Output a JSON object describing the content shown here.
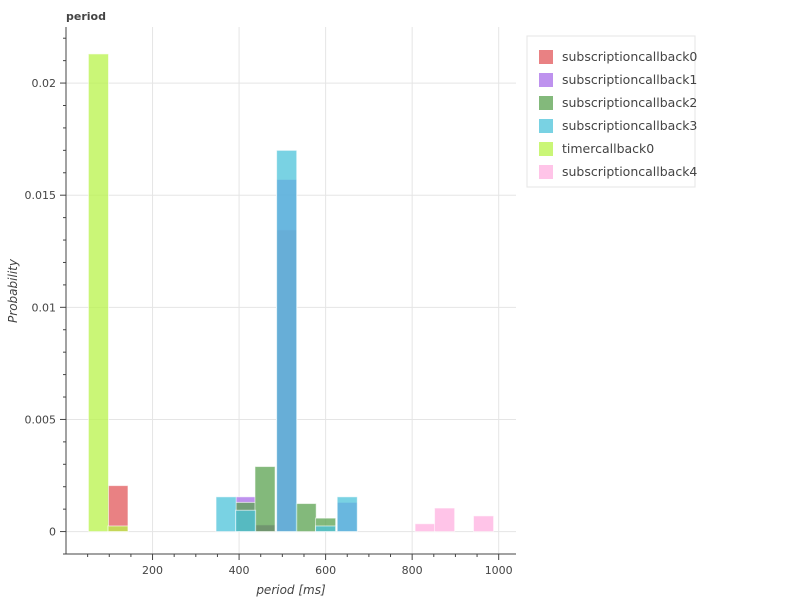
{
  "chart_data": {
    "type": "bar",
    "title": "period",
    "xlabel": "period [ms]",
    "ylabel": "Probability",
    "xlim": [
      0,
      1040
    ],
    "ylim": [
      -0.001,
      0.0225
    ],
    "x_ticks": [
      200,
      400,
      600,
      800,
      1000
    ],
    "y_ticks": [
      0,
      0.005,
      0.01,
      0.015,
      0.02
    ],
    "y_tick_labels": [
      "0",
      "0.005",
      "0.01",
      "0.015",
      "0.02"
    ],
    "bin_width": 46.5,
    "grid": true,
    "legend_position": "top-right",
    "series": [
      {
        "name": "subscriptioncallback0",
        "color": "#e15759",
        "bins": [
          [
            120,
            0.00205
          ],
          [
            460,
            0.0003
          ],
          [
            510,
            0.01345
          ]
        ]
      },
      {
        "name": "subscriptioncallback1",
        "color": "#a86ee8",
        "bins": [
          [
            415,
            0.00155
          ],
          [
            460,
            0.0003
          ],
          [
            510,
            0.0157
          ],
          [
            650,
            0.0013
          ]
        ]
      },
      {
        "name": "subscriptioncallback2",
        "color": "#59a14f",
        "bins": [
          [
            415,
            0.0013
          ],
          [
            460,
            0.0029
          ],
          [
            555,
            0.00125
          ],
          [
            600,
            0.0006
          ]
        ]
      },
      {
        "name": "subscriptioncallback3",
        "color": "#4cc3d9",
        "bins": [
          [
            370,
            0.00155
          ],
          [
            415,
            0.00095
          ],
          [
            510,
            0.017
          ],
          [
            600,
            0.00025
          ],
          [
            650,
            0.00155
          ]
        ]
      },
      {
        "name": "timercallback0",
        "color": "#b8f34a",
        "bins": [
          [
            75,
            0.0213
          ],
          [
            120,
            0.00025
          ]
        ]
      },
      {
        "name": "subscriptioncallback4",
        "color": "#ffb0e0",
        "bins": [
          [
            830,
            0.00035
          ],
          [
            875,
            0.00105
          ],
          [
            965,
            0.0007
          ]
        ]
      }
    ]
  }
}
